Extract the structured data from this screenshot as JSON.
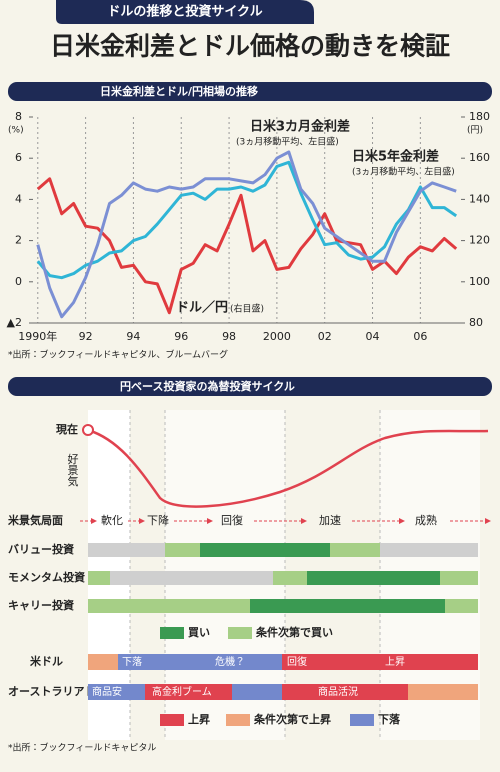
{
  "header": {
    "tab": "ドルの推移と投資サイクル",
    "title": "日米金利差とドル価格の動きを検証"
  },
  "chart_data": {
    "type": "line",
    "title": "日米金利差とドル/円相場の推移",
    "x": [
      1990,
      1990.5,
      1991,
      1991.5,
      1992,
      1992.5,
      1993,
      1993.5,
      1994,
      1994.5,
      1995,
      1995.5,
      1996,
      1996.5,
      1997,
      1997.5,
      1998,
      1998.5,
      1999,
      1999.5,
      2000,
      2000.5,
      2001,
      2001.5,
      2002,
      2002.5,
      2003,
      2003.5,
      2004,
      2004.5,
      2005,
      2005.5,
      2006,
      2006.5,
      2007,
      2007.5
    ],
    "xlim": [
      1989.8,
      2007.7
    ],
    "xticks": [
      {
        "value": 1990,
        "label": "1990年"
      },
      {
        "value": 1992,
        "label": "92"
      },
      {
        "value": 1994,
        "label": "94"
      },
      {
        "value": 1996,
        "label": "96"
      },
      {
        "value": 1998,
        "label": "98"
      },
      2000,
      {
        "value": 2002,
        "label": "02"
      },
      {
        "value": 2004,
        "label": "04"
      },
      {
        "value": 2006,
        "label": "06"
      }
    ],
    "ylim": [
      -2,
      8
    ],
    "yticks": [
      {
        "value": -2,
        "label": "▲2"
      },
      0,
      2,
      4,
      6,
      8
    ],
    "y_unit": "(%)",
    "y2lim": [
      80,
      180
    ],
    "y2ticks": [
      80,
      100,
      120,
      140,
      160,
      180
    ],
    "y2_unit": "(円)",
    "grid": "x",
    "series": [
      {
        "name": "ドル／円",
        "note": "(右目盛)",
        "color": "#e03a3e",
        "axis": "y2",
        "values": [
          145,
          150,
          133,
          138,
          127,
          126,
          120,
          107,
          108,
          100,
          99,
          85,
          106,
          109,
          118,
          115,
          128,
          142,
          115,
          120,
          106,
          107,
          116,
          123,
          133,
          120,
          119,
          118,
          106,
          110,
          104,
          112,
          117,
          115,
          121,
          116
        ]
      },
      {
        "name": "日米3カ月金利差",
        "note": "(3ヵ月移動平均、左目盛)",
        "color": "#2fb5d6",
        "axis": "y",
        "values": [
          1.0,
          0.3,
          0.2,
          0.4,
          0.8,
          1.0,
          1.4,
          1.5,
          2.0,
          2.2,
          2.8,
          3.5,
          4.2,
          4.3,
          4.0,
          4.5,
          4.5,
          4.6,
          4.4,
          4.7,
          5.6,
          5.8,
          4.3,
          3.0,
          1.8,
          1.9,
          1.3,
          1.1,
          1.2,
          1.7,
          2.8,
          3.5,
          4.6,
          3.6,
          3.6,
          3.2
        ]
      },
      {
        "name": "日米5年金利差",
        "note": "(3ヵ月移動平均、左目盛)",
        "color": "#7b8fd4",
        "axis": "y",
        "values": [
          1.8,
          -0.3,
          -1.7,
          -1.0,
          0.2,
          1.8,
          3.8,
          4.2,
          4.8,
          4.5,
          4.4,
          4.6,
          4.5,
          4.6,
          5.0,
          5.0,
          5.0,
          4.9,
          4.8,
          5.2,
          6.0,
          6.3,
          4.5,
          3.8,
          2.6,
          2.2,
          1.8,
          1.4,
          1.0,
          1.0,
          2.4,
          3.4,
          4.4,
          4.8,
          4.6,
          4.4
        ]
      }
    ],
    "source": "*出所：ブックフィールドキャピタル、ブルームバーグ"
  },
  "cycle": {
    "title": "円ベース投資家の為替投資サイクル",
    "now": "現在",
    "boom": "好景気",
    "phase_label": "米景気局面",
    "phases": [
      "軟化",
      "下降",
      "回復",
      "加速",
      "成熟"
    ],
    "investments": [
      "バリュー投資",
      "モメンタム投資",
      "キャリー投資"
    ],
    "legend1": [
      "買い",
      "条件次第で買い"
    ],
    "usd": {
      "label": "米ドル",
      "segments": [
        "下落",
        "危機？",
        "回復",
        "上昇"
      ]
    },
    "aud": {
      "label": "オーストラリアドル",
      "segments": [
        "商品安",
        "高金利ブーム",
        "商品活況"
      ]
    },
    "legend2": [
      "上昇",
      "条件次第で上昇",
      "下落"
    ],
    "source": "*出所：ブックフィールドキャピタル"
  }
}
